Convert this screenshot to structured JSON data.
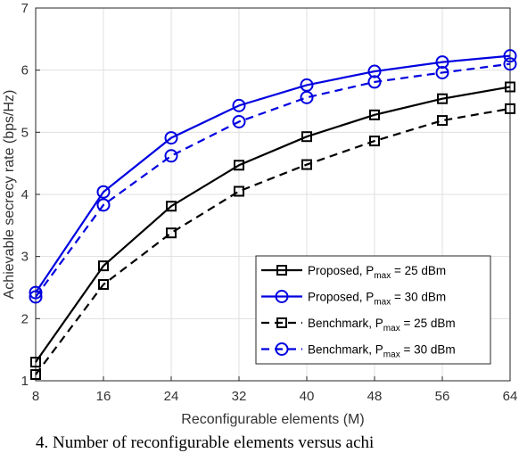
{
  "chart_data": {
    "type": "line",
    "xlabel": "Reconfigurable elements (M)",
    "ylabel": "Achievable secrecy rate (bps/Hz)",
    "x": [
      8,
      16,
      24,
      32,
      40,
      48,
      56,
      64
    ],
    "xticks": [
      "8",
      "16",
      "24",
      "32",
      "40",
      "48",
      "56",
      "64"
    ],
    "yticks": [
      "1",
      "2",
      "3",
      "4",
      "5",
      "6",
      "7"
    ],
    "xlim": [
      8,
      64
    ],
    "ylim": [
      1,
      7
    ],
    "grid": true,
    "legend_position": "bottom-right",
    "series": [
      {
        "name": "Proposed, P",
        "sub": "max",
        "suffix": " = 25 dBm",
        "color": "#000000",
        "style": "solid",
        "marker": "square",
        "values": [
          1.3,
          2.85,
          3.81,
          4.47,
          4.93,
          5.28,
          5.54,
          5.73
        ]
      },
      {
        "name": "Proposed, P",
        "sub": "max",
        "suffix": " = 30 dBm",
        "color": "#0000e0",
        "style": "solid",
        "marker": "circle",
        "values": [
          2.42,
          4.04,
          4.91,
          5.43,
          5.76,
          5.98,
          6.13,
          6.23
        ]
      },
      {
        "name": "Benchmark, P",
        "sub": "max",
        "suffix": " = 25 dBm",
        "color": "#000000",
        "style": "dashed",
        "marker": "square",
        "values": [
          1.1,
          2.55,
          3.38,
          4.05,
          4.48,
          4.86,
          5.19,
          5.38
        ]
      },
      {
        "name": "Benchmark, P",
        "sub": "max",
        "suffix": " = 30 dBm",
        "color": "#0000e0",
        "style": "dashed",
        "marker": "circle",
        "values": [
          2.35,
          3.83,
          4.62,
          5.17,
          5.56,
          5.81,
          5.96,
          6.1
        ]
      }
    ]
  },
  "caption": "4.   Number of reconfigurable elements versus achi"
}
